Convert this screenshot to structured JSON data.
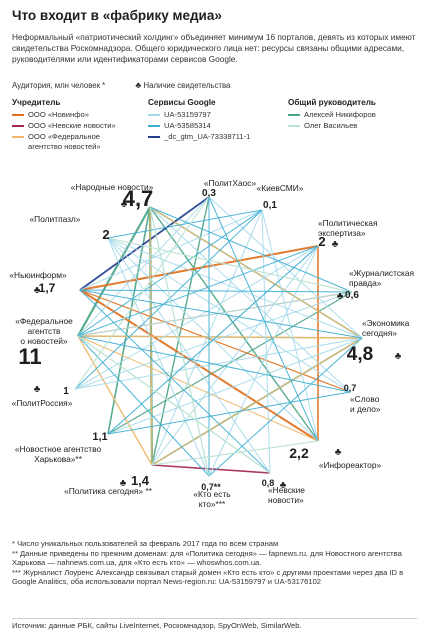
{
  "title": "Что входит в «фабрику медиа»",
  "intro": "Неформальный «патриотический холдинг» объединяет минимум 16 порталов, девять из которых имеют свидетельства Роскомнадзора. Общего юридического лица нет: ресурсы связаны общими адресами, руководителями или идентификаторами сервисов Google.",
  "legend_top": {
    "audience": "Аудитория, млн человек *",
    "license": "Наличие свидетельства"
  },
  "legend_groups": [
    {
      "header": "Учредитель",
      "items": [
        {
          "label": "ООО «Новинфо»",
          "color": "#e0701e"
        },
        {
          "label": "ООО «Невские новости»",
          "color": "#a1274f"
        },
        {
          "label": "ООО «Федеральное\nагентство новостей»",
          "color": "#f0b86a"
        }
      ]
    },
    {
      "header": "Сервисы Google",
      "items": [
        {
          "label": "UA-53159797",
          "color": "#a5d9ea"
        },
        {
          "label": "UA-53585314",
          "color": "#3eafd3"
        },
        {
          "label": "_dc_gtm_UA-73338711-1",
          "color": "#243f8f"
        }
      ]
    },
    {
      "header": "Общий руководитель",
      "items": [
        {
          "label": "Алексей Никифоров",
          "color": "#4aa587"
        },
        {
          "label": "Олег Васильев",
          "color": "#bde3d3"
        }
      ]
    }
  ],
  "nodes": [
    {
      "id": "narod",
      "label": "«Народные новости»",
      "aud": "4,7",
      "lic": true
    },
    {
      "id": "polithaos",
      "label": "«ПолитХаос»",
      "aud": "0,3",
      "lic": false
    },
    {
      "id": "kievsmi",
      "label": "«КиевСМИ»",
      "aud": "0,1",
      "lic": false
    },
    {
      "id": "politeksp",
      "label": "«Политическая экспертиза»",
      "aud": "2",
      "lic": true
    },
    {
      "id": "zhurpravda",
      "label": "«Журналистская правда»",
      "aud": "0,6",
      "lic": true
    },
    {
      "id": "ekonomika",
      "label": "«Экономика сегодня»",
      "aud": "4,8",
      "lic": true
    },
    {
      "id": "slovo",
      "label": "«Слово и дело»",
      "aud": "0,7",
      "lic": false
    },
    {
      "id": "infor",
      "label": "«Инфореактор»",
      "aud": "2,2",
      "lic": true
    },
    {
      "id": "nevskie",
      "label": "«Невские новости»",
      "aud": "0,8",
      "lic": true
    },
    {
      "id": "ktoest",
      "label": "«Кто есть кто»***",
      "aud": "0,7**",
      "lic": false
    },
    {
      "id": "politsegodnya",
      "label": "«Политика сегодня» **",
      "aud": "1,4",
      "lic": true
    },
    {
      "id": "novharkov",
      "label": "«Новостное агентство Харькова»**",
      "aud": "1,1",
      "lic": false
    },
    {
      "id": "politrossiya",
      "label": "«ПолитРоссия»",
      "aud": "1",
      "lic": true
    },
    {
      "id": "fan",
      "label": "«Федеральное агентство новостей»",
      "aud": "11",
      "lic": false
    },
    {
      "id": "newsinform",
      "label": "«Ньюинформ»",
      "aud": "1,7",
      "lic": true
    },
    {
      "id": "politpazl",
      "label": "«Политпазл»",
      "aud": "2",
      "lic": false
    }
  ],
  "footnotes": [
    "* Число уникальных пользователей за февраль 2017 года по всем странам",
    "** Данные приведены по прежним доменам: для «Политика сегодня» — fapnews.ru, для Новостного агентства Харькова — nahnews.com.ua, для «Кто есть кто» — whoswhos.com.ua.",
    "*** Журналист Лоуренс Александр связывал старый домен «Кто есть кто» с другими проектами через два ID в Google Analitics, оба использовали портал News-region.ru: UA-53159797 и UA-53176102"
  ],
  "source": "Источник: данные РБК, сайты LiveInternet, Роскомнадзор, SpyOnWeb, SimilarWeb."
}
